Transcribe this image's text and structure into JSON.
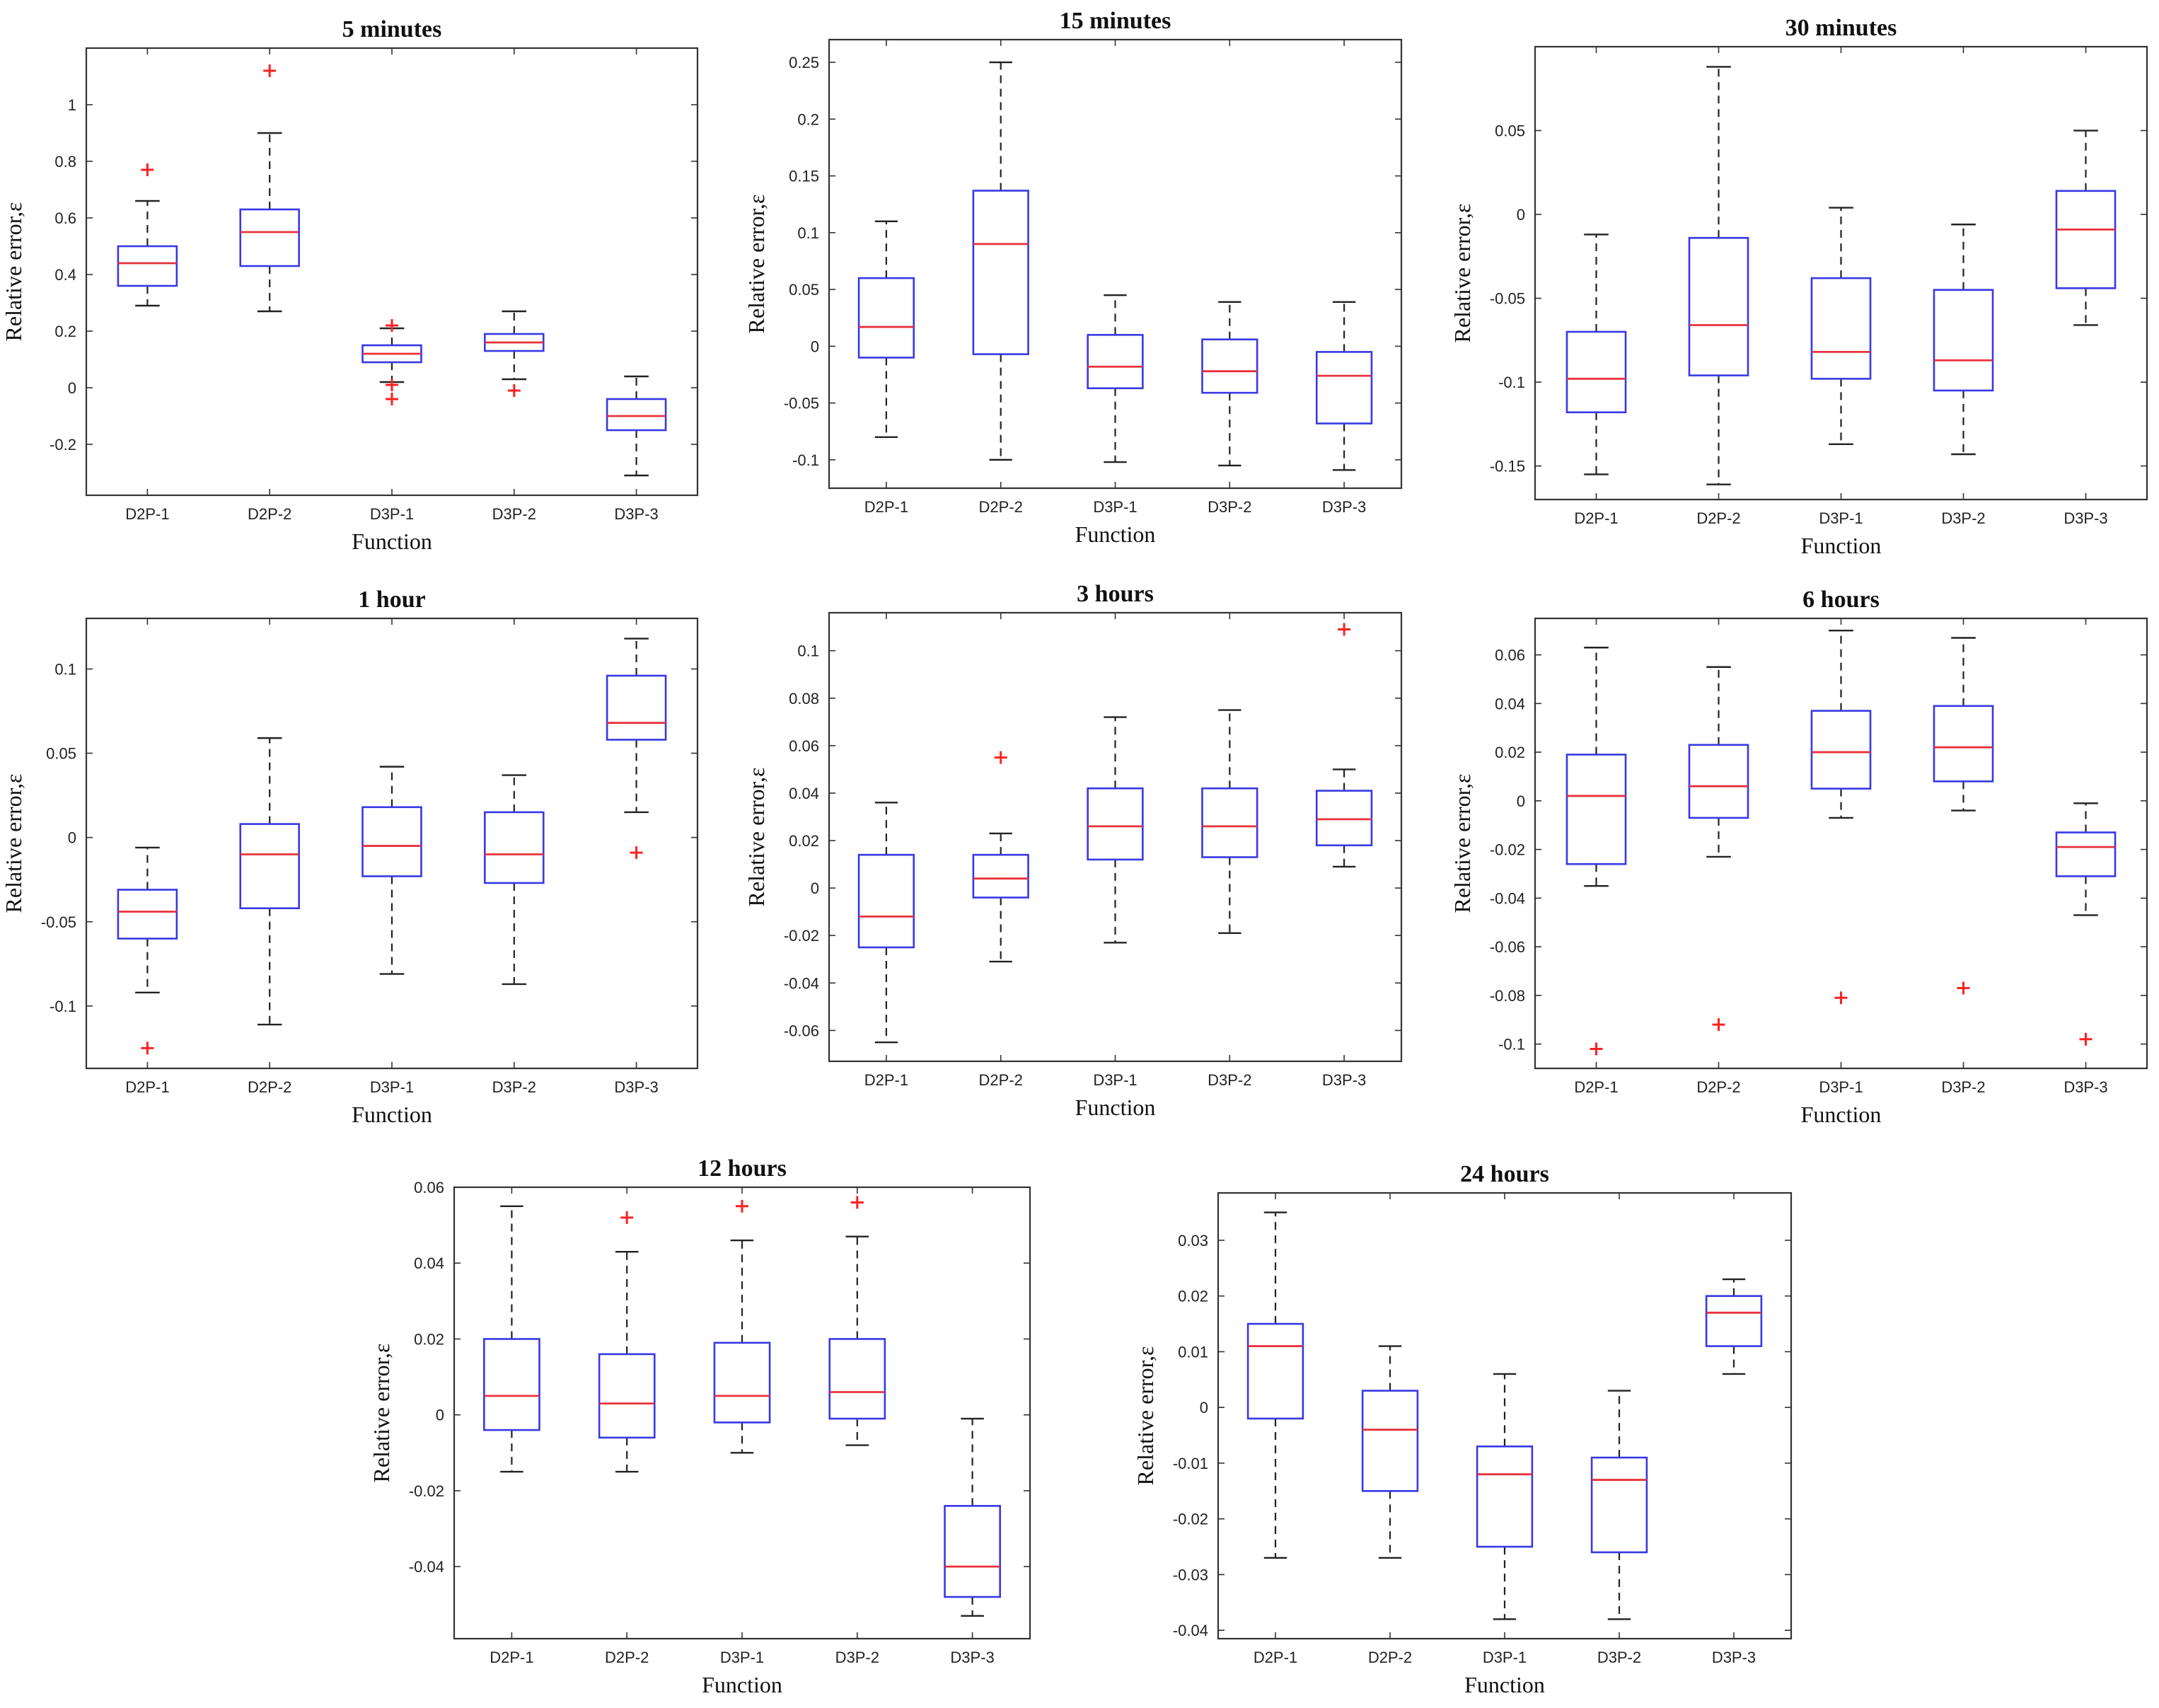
{
  "chart_data": [
    {
      "type": "boxplot",
      "title": "5 minutes",
      "xlabel": "Function",
      "ylabel": "Relative error,ε",
      "ylim": [
        -0.38,
        1.2
      ],
      "yticks": [
        -0.2,
        0,
        0.2,
        0.4,
        0.6,
        0.8,
        1
      ],
      "yticklabels": [
        "-0.2",
        "0",
        "0.2",
        "0.4",
        "0.6",
        "0.8",
        "1"
      ],
      "categories": [
        "D2P-1",
        "D2P-2",
        "D3P-1",
        "D3P-2",
        "D3P-3"
      ],
      "boxes": [
        {
          "whisker_low": 0.29,
          "q1": 0.36,
          "median": 0.44,
          "q3": 0.5,
          "whisker_high": 0.66,
          "outliers": [
            0.77
          ]
        },
        {
          "whisker_low": 0.27,
          "q1": 0.43,
          "median": 0.55,
          "q3": 0.63,
          "whisker_high": 0.9,
          "outliers": [
            1.12
          ]
        },
        {
          "whisker_low": 0.02,
          "q1": 0.09,
          "median": 0.12,
          "q3": 0.15,
          "whisker_high": 0.21,
          "outliers": [
            0.22,
            0.01,
            -0.04
          ]
        },
        {
          "whisker_low": 0.03,
          "q1": 0.13,
          "median": 0.16,
          "q3": 0.19,
          "whisker_high": 0.27,
          "outliers": [
            -0.01
          ]
        },
        {
          "whisker_low": -0.31,
          "q1": -0.15,
          "median": -0.1,
          "q3": -0.04,
          "whisker_high": 0.04,
          "outliers": []
        }
      ]
    },
    {
      "type": "boxplot",
      "title": "15 minutes",
      "xlabel": "Function",
      "ylabel": "Relative error,ε",
      "ylim": [
        -0.125,
        0.27
      ],
      "yticks": [
        -0.1,
        -0.05,
        0,
        0.05,
        0.1,
        0.15,
        0.2,
        0.25
      ],
      "yticklabels": [
        "-0.1",
        "-0.05",
        "0",
        "0.05",
        "0.1",
        "0.15",
        "0.2",
        "0.25"
      ],
      "categories": [
        "D2P-1",
        "D2P-2",
        "D3P-1",
        "D3P-2",
        "D3P-3"
      ],
      "boxes": [
        {
          "whisker_low": -0.08,
          "q1": -0.01,
          "median": 0.017,
          "q3": 0.06,
          "whisker_high": 0.11,
          "outliers": []
        },
        {
          "whisker_low": -0.1,
          "q1": -0.007,
          "median": 0.09,
          "q3": 0.137,
          "whisker_high": 0.25,
          "outliers": []
        },
        {
          "whisker_low": -0.102,
          "q1": -0.037,
          "median": -0.018,
          "q3": 0.01,
          "whisker_high": 0.045,
          "outliers": []
        },
        {
          "whisker_low": -0.105,
          "q1": -0.041,
          "median": -0.022,
          "q3": 0.006,
          "whisker_high": 0.039,
          "outliers": []
        },
        {
          "whisker_low": -0.109,
          "q1": -0.068,
          "median": -0.026,
          "q3": -0.005,
          "whisker_high": 0.039,
          "outliers": []
        }
      ]
    },
    {
      "type": "boxplot",
      "title": "30 minutes",
      "xlabel": "Function",
      "ylabel": "Relative error,ε",
      "ylim": [
        -0.17,
        0.1
      ],
      "yticks": [
        -0.15,
        -0.1,
        -0.05,
        0,
        0.05
      ],
      "yticklabels": [
        "-0.15",
        "-0.1",
        "-0.05",
        "0",
        "0.05"
      ],
      "categories": [
        "D2P-1",
        "D2P-2",
        "D3P-1",
        "D3P-2",
        "D3P-3"
      ],
      "boxes": [
        {
          "whisker_low": -0.155,
          "q1": -0.118,
          "median": -0.098,
          "q3": -0.07,
          "whisker_high": -0.012,
          "outliers": []
        },
        {
          "whisker_low": -0.161,
          "q1": -0.096,
          "median": -0.066,
          "q3": -0.014,
          "whisker_high": 0.088,
          "outliers": []
        },
        {
          "whisker_low": -0.137,
          "q1": -0.098,
          "median": -0.082,
          "q3": -0.038,
          "whisker_high": 0.004,
          "outliers": []
        },
        {
          "whisker_low": -0.143,
          "q1": -0.105,
          "median": -0.087,
          "q3": -0.045,
          "whisker_high": -0.006,
          "outliers": []
        },
        {
          "whisker_low": -0.066,
          "q1": -0.044,
          "median": -0.009,
          "q3": 0.014,
          "whisker_high": 0.05,
          "outliers": []
        }
      ]
    },
    {
      "type": "boxplot",
      "title": "1 hour",
      "xlabel": "Function",
      "ylabel": "Relative error,ε",
      "ylim": [
        -0.137,
        0.13
      ],
      "yticks": [
        -0.1,
        -0.05,
        0,
        0.05,
        0.1
      ],
      "yticklabels": [
        "-0.1",
        "-0.05",
        "0",
        "0.05",
        "0.1"
      ],
      "categories": [
        "D2P-1",
        "D2P-2",
        "D3P-1",
        "D3P-2",
        "D3P-3"
      ],
      "boxes": [
        {
          "whisker_low": -0.092,
          "q1": -0.06,
          "median": -0.044,
          "q3": -0.031,
          "whisker_high": -0.006,
          "outliers": [
            -0.125
          ]
        },
        {
          "whisker_low": -0.111,
          "q1": -0.042,
          "median": -0.01,
          "q3": 0.008,
          "whisker_high": 0.059,
          "outliers": []
        },
        {
          "whisker_low": -0.081,
          "q1": -0.023,
          "median": -0.005,
          "q3": 0.018,
          "whisker_high": 0.042,
          "outliers": []
        },
        {
          "whisker_low": -0.087,
          "q1": -0.027,
          "median": -0.01,
          "q3": 0.015,
          "whisker_high": 0.037,
          "outliers": []
        },
        {
          "whisker_low": 0.015,
          "q1": 0.058,
          "median": 0.068,
          "q3": 0.096,
          "whisker_high": 0.118,
          "outliers": [
            -0.009
          ]
        }
      ]
    },
    {
      "type": "boxplot",
      "title": "3 hours",
      "xlabel": "Function",
      "ylabel": "Relative error,ε",
      "ylim": [
        -0.073,
        0.116
      ],
      "yticks": [
        -0.06,
        -0.04,
        -0.02,
        0,
        0.02,
        0.04,
        0.06,
        0.08,
        0.1
      ],
      "yticklabels": [
        "-0.06",
        "-0.04",
        "-0.02",
        "0",
        "0.02",
        "0.04",
        "0.06",
        "0.08",
        "0.1"
      ],
      "categories": [
        "D2P-1",
        "D2P-2",
        "D3P-1",
        "D3P-2",
        "D3P-3"
      ],
      "boxes": [
        {
          "whisker_low": -0.065,
          "q1": -0.025,
          "median": -0.012,
          "q3": 0.014,
          "whisker_high": 0.036,
          "outliers": []
        },
        {
          "whisker_low": -0.031,
          "q1": -0.004,
          "median": 0.004,
          "q3": 0.014,
          "whisker_high": 0.023,
          "outliers": [
            0.055
          ]
        },
        {
          "whisker_low": -0.023,
          "q1": 0.012,
          "median": 0.026,
          "q3": 0.042,
          "whisker_high": 0.072,
          "outliers": []
        },
        {
          "whisker_low": -0.019,
          "q1": 0.013,
          "median": 0.026,
          "q3": 0.042,
          "whisker_high": 0.075,
          "outliers": []
        },
        {
          "whisker_low": 0.009,
          "q1": 0.018,
          "median": 0.029,
          "q3": 0.041,
          "whisker_high": 0.05,
          "outliers": [
            0.109
          ]
        }
      ]
    },
    {
      "type": "boxplot",
      "title": "6 hours",
      "xlabel": "Function",
      "ylabel": "Relative error,ε",
      "ylim": [
        -0.11,
        0.075
      ],
      "yticks": [
        -0.1,
        -0.08,
        -0.06,
        -0.04,
        -0.02,
        0,
        0.02,
        0.04,
        0.06
      ],
      "yticklabels": [
        "-0.1",
        "-0.08",
        "-0.06",
        "-0.04",
        "-0.02",
        "0",
        "0.02",
        "0.04",
        "0.06"
      ],
      "categories": [
        "D2P-1",
        "D2P-2",
        "D3P-1",
        "D3P-2",
        "D3P-3"
      ],
      "boxes": [
        {
          "whisker_low": -0.035,
          "q1": -0.026,
          "median": 0.002,
          "q3": 0.019,
          "whisker_high": 0.063,
          "outliers": [
            -0.102
          ]
        },
        {
          "whisker_low": -0.023,
          "q1": -0.007,
          "median": 0.006,
          "q3": 0.023,
          "whisker_high": 0.055,
          "outliers": [
            -0.092
          ]
        },
        {
          "whisker_low": -0.007,
          "q1": 0.005,
          "median": 0.02,
          "q3": 0.037,
          "whisker_high": 0.07,
          "outliers": [
            -0.081
          ]
        },
        {
          "whisker_low": -0.004,
          "q1": 0.008,
          "median": 0.022,
          "q3": 0.039,
          "whisker_high": 0.067,
          "outliers": [
            -0.077
          ]
        },
        {
          "whisker_low": -0.047,
          "q1": -0.031,
          "median": -0.019,
          "q3": -0.013,
          "whisker_high": -0.001,
          "outliers": [
            -0.098
          ]
        }
      ]
    },
    {
      "type": "boxplot",
      "title": "12 hours",
      "xlabel": "Function",
      "ylabel": "Relative error,ε",
      "ylim": [
        -0.059,
        0.06
      ],
      "yticks": [
        -0.04,
        -0.02,
        0,
        0.02,
        0.04,
        0.06
      ],
      "yticklabels": [
        "-0.04",
        "-0.02",
        "0",
        "0.02",
        "0.04",
        "0.06"
      ],
      "categories": [
        "D2P-1",
        "D2P-2",
        "D3P-1",
        "D3P-2",
        "D3P-3"
      ],
      "boxes": [
        {
          "whisker_low": -0.015,
          "q1": -0.004,
          "median": 0.005,
          "q3": 0.02,
          "whisker_high": 0.055,
          "outliers": []
        },
        {
          "whisker_low": -0.015,
          "q1": -0.006,
          "median": 0.003,
          "q3": 0.016,
          "whisker_high": 0.043,
          "outliers": [
            0.052
          ]
        },
        {
          "whisker_low": -0.01,
          "q1": -0.002,
          "median": 0.005,
          "q3": 0.019,
          "whisker_high": 0.046,
          "outliers": [
            0.055
          ]
        },
        {
          "whisker_low": -0.008,
          "q1": -0.001,
          "median": 0.006,
          "q3": 0.02,
          "whisker_high": 0.047,
          "outliers": [
            0.056
          ]
        },
        {
          "whisker_low": -0.053,
          "q1": -0.048,
          "median": -0.04,
          "q3": -0.024,
          "whisker_high": -0.001,
          "outliers": []
        }
      ]
    },
    {
      "type": "boxplot",
      "title": "24 hours",
      "xlabel": "Function",
      "ylabel": "Relative error,ε",
      "ylim": [
        -0.0415,
        0.0385
      ],
      "yticks": [
        -0.04,
        -0.03,
        -0.02,
        -0.01,
        0,
        0.01,
        0.02,
        0.03
      ],
      "yticklabels": [
        "-0.04",
        "-0.03",
        "-0.02",
        "-0.01",
        "0",
        "0.01",
        "0.02",
        "0.03"
      ],
      "categories": [
        "D2P-1",
        "D2P-2",
        "D3P-1",
        "D3P-2",
        "D3P-3"
      ],
      "boxes": [
        {
          "whisker_low": -0.027,
          "q1": -0.002,
          "median": 0.011,
          "q3": 0.015,
          "whisker_high": 0.035,
          "outliers": []
        },
        {
          "whisker_low": -0.027,
          "q1": -0.015,
          "median": -0.004,
          "q3": 0.003,
          "whisker_high": 0.011,
          "outliers": []
        },
        {
          "whisker_low": -0.038,
          "q1": -0.025,
          "median": -0.012,
          "q3": -0.007,
          "whisker_high": 0.006,
          "outliers": []
        },
        {
          "whisker_low": -0.038,
          "q1": -0.026,
          "median": -0.013,
          "q3": -0.009,
          "whisker_high": 0.003,
          "outliers": []
        },
        {
          "whisker_low": 0.006,
          "q1": 0.011,
          "median": 0.017,
          "q3": 0.02,
          "whisker_high": 0.023,
          "outliers": []
        }
      ]
    }
  ]
}
